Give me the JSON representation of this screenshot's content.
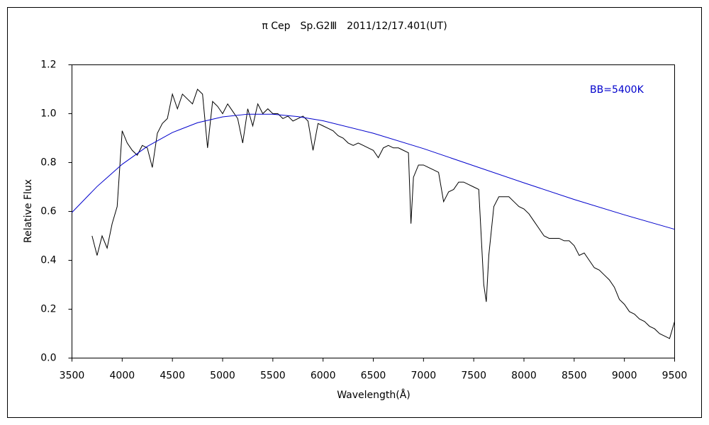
{
  "chart_data": {
    "type": "line",
    "title": "π Cep　Sp.G2Ⅲ　2011/12/17.401(UT)",
    "x_label": "Wavelength(Å)",
    "y_label": "Relative Flux",
    "xlim": [
      3500,
      9500
    ],
    "xticks": [
      3500,
      4000,
      4500,
      5000,
      5500,
      6000,
      6500,
      7000,
      7500,
      8000,
      8500,
      9000,
      9500
    ],
    "ylim": [
      0,
      1.2
    ],
    "yticks": [
      {
        "value": 0,
        "label": "0.0"
      },
      0.2,
      0.4,
      0.6,
      0.8,
      {
        "value": 1,
        "label": "1.0"
      },
      1.2
    ],
    "grid": false,
    "series": [
      {
        "color": "#000000",
        "x": [
          3700,
          3750,
          3800,
          3850,
          3900,
          3950,
          4000,
          4050,
          4100,
          4150,
          4200,
          4250,
          4300,
          4350,
          4400,
          4450,
          4500,
          4550,
          4600,
          4650,
          4700,
          4750,
          4800,
          4850,
          4900,
          4950,
          5000,
          5050,
          5100,
          5150,
          5200,
          5250,
          5300,
          5350,
          5400,
          5450,
          5500,
          5550,
          5600,
          5650,
          5700,
          5750,
          5800,
          5850,
          5900,
          5950,
          6000,
          6050,
          6100,
          6150,
          6200,
          6250,
          6300,
          6350,
          6400,
          6450,
          6500,
          6550,
          6600,
          6650,
          6700,
          6750,
          6800,
          6850,
          6875,
          6900,
          6950,
          7000,
          7050,
          7100,
          7150,
          7200,
          7250,
          7300,
          7350,
          7400,
          7450,
          7500,
          7550,
          7600,
          7625,
          7650,
          7700,
          7750,
          7800,
          7850,
          7900,
          7950,
          8000,
          8050,
          8100,
          8150,
          8200,
          8250,
          8300,
          8350,
          8400,
          8450,
          8500,
          8550,
          8600,
          8650,
          8700,
          8750,
          8800,
          8850,
          8900,
          8950,
          9000,
          9050,
          9100,
          9150,
          9200,
          9250,
          9300,
          9350,
          9400,
          9450,
          9500
        ],
        "values": [
          0.5,
          0.42,
          0.5,
          0.45,
          0.55,
          0.62,
          0.93,
          0.88,
          0.85,
          0.83,
          0.87,
          0.86,
          0.78,
          0.92,
          0.96,
          0.98,
          1.08,
          1.02,
          1.08,
          1.06,
          1.04,
          1.1,
          1.08,
          0.86,
          1.05,
          1.03,
          1.0,
          1.04,
          1.01,
          0.98,
          0.88,
          1.02,
          0.95,
          1.04,
          1.0,
          1.02,
          1.0,
          1.0,
          0.98,
          0.99,
          0.97,
          0.98,
          0.99,
          0.97,
          0.85,
          0.96,
          0.95,
          0.94,
          0.93,
          0.91,
          0.9,
          0.88,
          0.87,
          0.88,
          0.87,
          0.86,
          0.85,
          0.82,
          0.86,
          0.87,
          0.86,
          0.86,
          0.85,
          0.84,
          0.55,
          0.74,
          0.79,
          0.79,
          0.78,
          0.77,
          0.76,
          0.64,
          0.68,
          0.69,
          0.72,
          0.72,
          0.71,
          0.7,
          0.69,
          0.3,
          0.23,
          0.42,
          0.62,
          0.66,
          0.66,
          0.66,
          0.64,
          0.62,
          0.61,
          0.59,
          0.56,
          0.53,
          0.5,
          0.49,
          0.49,
          0.49,
          0.48,
          0.48,
          0.46,
          0.42,
          0.43,
          0.4,
          0.37,
          0.36,
          0.34,
          0.32,
          0.29,
          0.24,
          0.22,
          0.19,
          0.18,
          0.16,
          0.15,
          0.13,
          0.12,
          0.1,
          0.09,
          0.08,
          0.15
        ]
      },
      {
        "name": "BB=5400K",
        "color": "#0000cc",
        "x": [
          3500,
          3750,
          4000,
          4250,
          4500,
          4750,
          5000,
          5250,
          5500,
          5750,
          6000,
          6500,
          7000,
          7500,
          8000,
          8500,
          9000,
          9500
        ],
        "values": [
          0.596,
          0.702,
          0.793,
          0.866,
          0.923,
          0.963,
          0.987,
          0.998,
          0.998,
          0.988,
          0.971,
          0.92,
          0.857,
          0.787,
          0.717,
          0.649,
          0.586,
          0.527
        ]
      }
    ]
  }
}
